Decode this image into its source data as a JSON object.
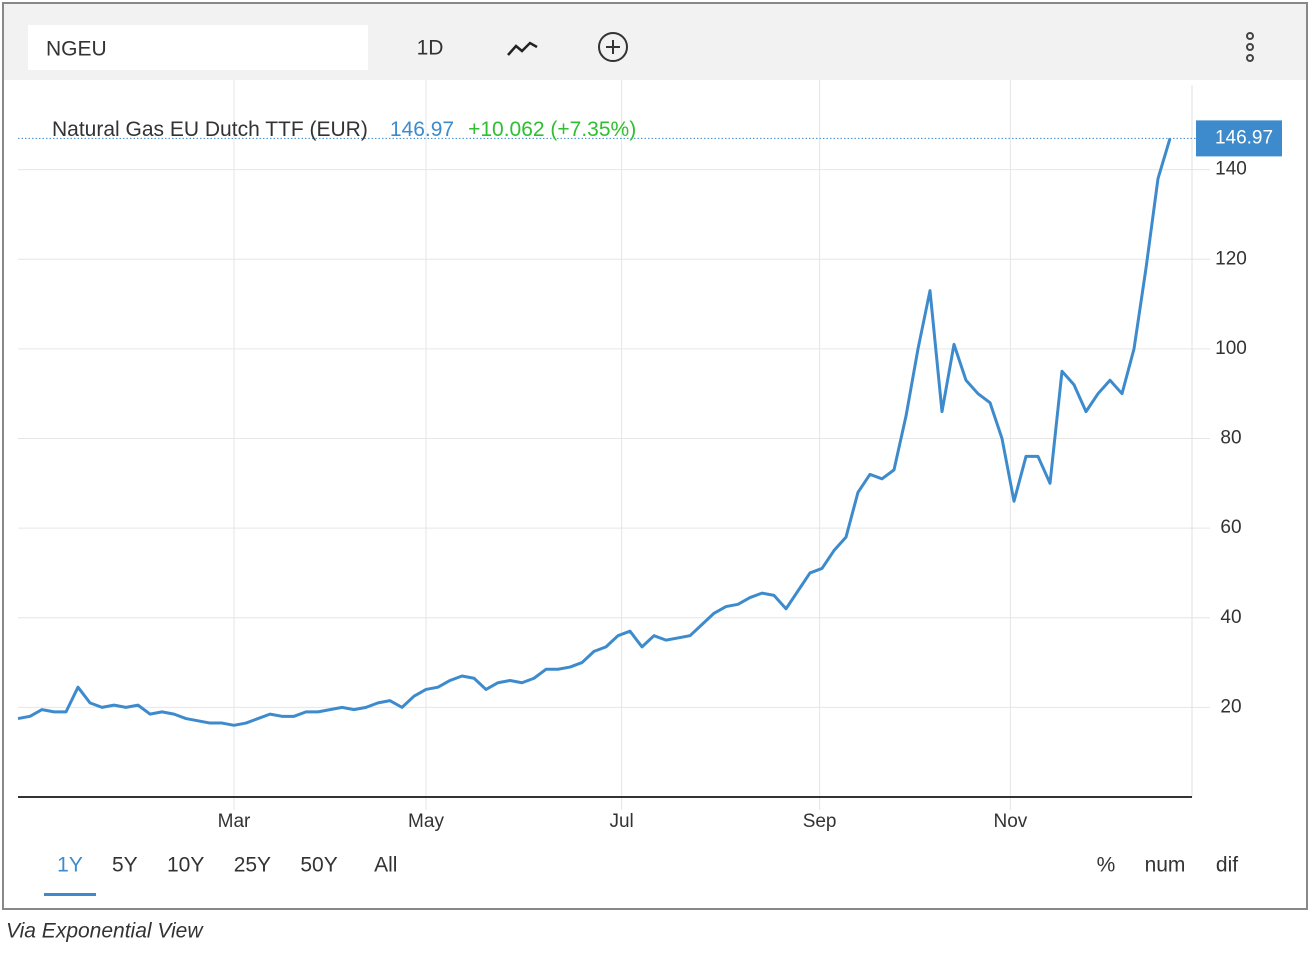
{
  "toolbar": {
    "symbol": "NGEU",
    "interval": "1D"
  },
  "chart_data": {
    "type": "line",
    "title": "Natural Gas EU Dutch TTF (EUR)",
    "change": "+10.062 (+7.35%)",
    "series": [
      {
        "name": "NGEU",
        "color": "#3d8bcd",
        "values": [
          17.5,
          18,
          19.5,
          19,
          19,
          24.5,
          21,
          20,
          20.5,
          20,
          20.5,
          18.5,
          19,
          18.5,
          17.5,
          17,
          16.5,
          16.5,
          16,
          16.5,
          17.5,
          18.5,
          18,
          18,
          19,
          19,
          19.5,
          20,
          19.5,
          20,
          21,
          21.5,
          20,
          22.5,
          24,
          24.5,
          26,
          27,
          26.5,
          24,
          25.5,
          26,
          25.5,
          26.5,
          28.5,
          28.5,
          29,
          30,
          32.5,
          33.5,
          36,
          37,
          33.5,
          36,
          35,
          35.5,
          36,
          38.5,
          41,
          42.5,
          43,
          44.5,
          45.5,
          45,
          42,
          46,
          50,
          51,
          55,
          58,
          68,
          72,
          71,
          73,
          85,
          100,
          113,
          86,
          101,
          93,
          90,
          88,
          80,
          66,
          76,
          76,
          70,
          95,
          92,
          86,
          90,
          93,
          90,
          100,
          118,
          138,
          146.97
        ]
      }
    ],
    "xlim": [
      0,
      96
    ],
    "xticks": [
      {
        "value": 18,
        "label": "Mar"
      },
      {
        "value": 34,
        "label": "May"
      },
      {
        "value": 50.3,
        "label": "Jul"
      },
      {
        "value": 66.8,
        "label": "Sep"
      },
      {
        "value": 82.7,
        "label": "Nov"
      }
    ],
    "ylim": [
      0,
      160
    ],
    "yticks": [
      20,
      40,
      60,
      80,
      100,
      120,
      140
    ],
    "grid": true,
    "change_color": "#2ec02e"
  },
  "ranges": {
    "items": [
      "1Y",
      "5Y",
      "10Y",
      "25Y",
      "50Y",
      "All"
    ],
    "selected": 0
  },
  "modes": [
    "%",
    "num",
    "dif"
  ],
  "caption": "Via Exponential View"
}
